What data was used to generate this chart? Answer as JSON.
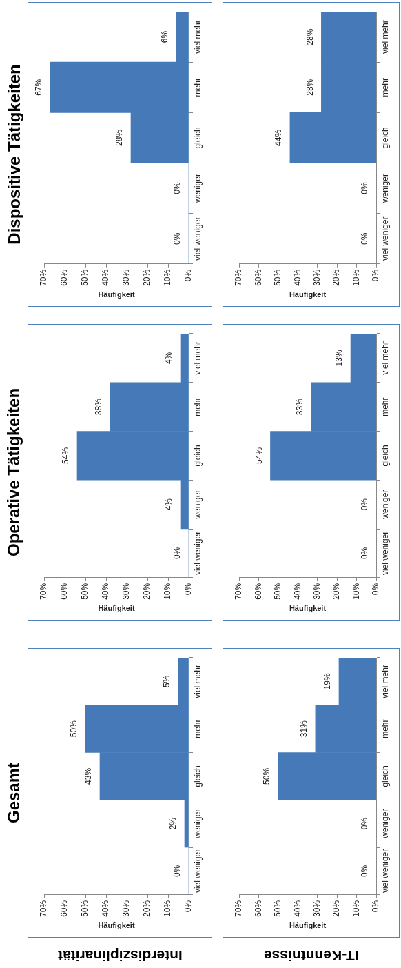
{
  "chart_data": [
    {
      "type": "bar",
      "orientation": "horizontal",
      "title": "Gesamt",
      "annotations": [
        "Interdisziplinarität"
      ],
      "xlabel": "Häufigkeit",
      "categories": [
        "viel mehr",
        "mehr",
        "gleich",
        "weniger",
        "viel weniger"
      ],
      "values": [
        5,
        50,
        43,
        2,
        0
      ],
      "value_labels": [
        "5%",
        "50%",
        "43%",
        "2%",
        "0%"
      ],
      "color": "#4679b8",
      "xlim": [
        70,
        0
      ],
      "xticks": [
        {
          "value": 70,
          "label": "70%"
        },
        {
          "value": 60,
          "label": "60%"
        },
        {
          "value": 50,
          "label": "50%"
        },
        {
          "value": 40,
          "label": "40%"
        },
        {
          "value": 30,
          "label": "30%"
        },
        {
          "value": 20,
          "label": "20%"
        },
        {
          "value": 10,
          "label": "10%"
        },
        {
          "value": 0,
          "label": "0%"
        }
      ],
      "grid": false,
      "legend": false
    },
    {
      "type": "bar",
      "orientation": "horizontal",
      "title": "Operative Tätigkeiten",
      "xlabel": "Häufigkeit",
      "categories": [
        "viel mehr",
        "mehr",
        "gleich",
        "weniger",
        "viel weniger"
      ],
      "values": [
        4,
        38,
        54,
        4,
        0
      ],
      "value_labels": [
        "4%",
        "38%",
        "54%",
        "4%",
        "0%"
      ],
      "color": "#4679b8",
      "xlim": [
        70,
        0
      ],
      "xticks": [
        {
          "value": 70,
          "label": "70%"
        },
        {
          "value": 60,
          "label": "60%"
        },
        {
          "value": 50,
          "label": "50%"
        },
        {
          "value": 40,
          "label": "40%"
        },
        {
          "value": 30,
          "label": "30%"
        },
        {
          "value": 20,
          "label": "20%"
        },
        {
          "value": 10,
          "label": "10%"
        },
        {
          "value": 0,
          "label": "0%"
        }
      ],
      "grid": false,
      "legend": false
    },
    {
      "type": "bar",
      "orientation": "horizontal",
      "title": "Dispositive Tätigkeiten",
      "xlabel": "Häufigkeit",
      "categories": [
        "viel mehr",
        "mehr",
        "gleich",
        "weniger",
        "viel weniger"
      ],
      "values": [
        6,
        67,
        28,
        0,
        0
      ],
      "value_labels": [
        "6%",
        "67%",
        "28%",
        "0%",
        "0%"
      ],
      "color": "#4679b8",
      "xlim": [
        70,
        0
      ],
      "xticks": [
        {
          "value": 70,
          "label": "70%"
        },
        {
          "value": 60,
          "label": "60%"
        },
        {
          "value": 50,
          "label": "50%"
        },
        {
          "value": 40,
          "label": "40%"
        },
        {
          "value": 30,
          "label": "30%"
        },
        {
          "value": 20,
          "label": "20%"
        },
        {
          "value": 10,
          "label": "10%"
        },
        {
          "value": 0,
          "label": "0%"
        }
      ],
      "grid": false,
      "legend": false
    },
    {
      "type": "bar",
      "orientation": "horizontal",
      "annotations": [
        "IT-Kenntnisse"
      ],
      "xlabel": "Häufigkeit",
      "categories": [
        "viel mehr",
        "mehr",
        "gleich",
        "weniger",
        "viel weniger"
      ],
      "values": [
        19,
        31,
        50,
        0,
        0
      ],
      "value_labels": [
        "19%",
        "31%",
        "50%",
        "0%",
        "0%"
      ],
      "color": "#4679b8",
      "xlim": [
        70,
        0
      ],
      "xticks": [
        {
          "value": 70,
          "label": "70%"
        },
        {
          "value": 60,
          "label": "60%"
        },
        {
          "value": 50,
          "label": "50%"
        },
        {
          "value": 40,
          "label": "40%"
        },
        {
          "value": 30,
          "label": "30%"
        },
        {
          "value": 20,
          "label": "20%"
        },
        {
          "value": 10,
          "label": "10%"
        },
        {
          "value": 0,
          "label": "0%"
        }
      ],
      "grid": false,
      "legend": false
    },
    {
      "type": "bar",
      "orientation": "horizontal",
      "xlabel": "Häufigkeit",
      "categories": [
        "viel mehr",
        "mehr",
        "gleich",
        "weniger",
        "viel weniger"
      ],
      "values": [
        13,
        33,
        54,
        0,
        0
      ],
      "value_labels": [
        "13%",
        "33%",
        "54%",
        "0%",
        "0%"
      ],
      "color": "#4679b8",
      "xlim": [
        70,
        0
      ],
      "xticks": [
        {
          "value": 70,
          "label": "70%"
        },
        {
          "value": 60,
          "label": "60%"
        },
        {
          "value": 50,
          "label": "50%"
        },
        {
          "value": 40,
          "label": "40%"
        },
        {
          "value": 30,
          "label": "30%"
        },
        {
          "value": 20,
          "label": "20%"
        },
        {
          "value": 10,
          "label": "10%"
        },
        {
          "value": 0,
          "label": "0%"
        }
      ],
      "grid": false,
      "legend": false
    },
    {
      "type": "bar",
      "orientation": "horizontal",
      "xlabel": "Häufigkeit",
      "categories": [
        "viel mehr",
        "mehr",
        "gleich",
        "weniger",
        "viel weniger"
      ],
      "values": [
        28,
        28,
        44,
        0,
        0
      ],
      "value_labels": [
        "28%",
        "28%",
        "44%",
        "0%",
        "0%"
      ],
      "color": "#4679b8",
      "xlim": [
        70,
        0
      ],
      "xticks": [
        {
          "value": 70,
          "label": "70%"
        },
        {
          "value": 60,
          "label": "60%"
        },
        {
          "value": 50,
          "label": "50%"
        },
        {
          "value": 40,
          "label": "40%"
        },
        {
          "value": 30,
          "label": "30%"
        },
        {
          "value": 20,
          "label": "20%"
        },
        {
          "value": 10,
          "label": "10%"
        },
        {
          "value": 0,
          "label": "0%"
        }
      ],
      "grid": false,
      "legend": false
    }
  ]
}
